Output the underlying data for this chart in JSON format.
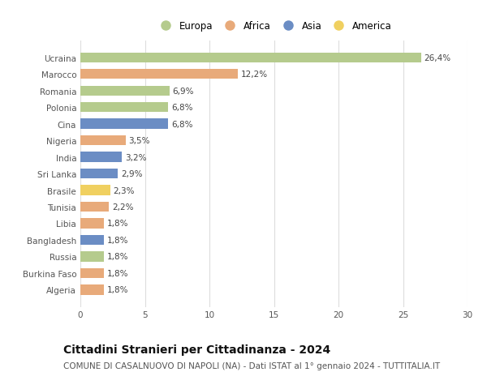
{
  "countries": [
    "Ucraina",
    "Marocco",
    "Romania",
    "Polonia",
    "Cina",
    "Nigeria",
    "India",
    "Sri Lanka",
    "Brasile",
    "Tunisia",
    "Libia",
    "Bangladesh",
    "Russia",
    "Burkina Faso",
    "Algeria"
  ],
  "values": [
    26.4,
    12.2,
    6.9,
    6.8,
    6.8,
    3.5,
    3.2,
    2.9,
    2.3,
    2.2,
    1.8,
    1.8,
    1.8,
    1.8,
    1.8
  ],
  "labels": [
    "26,4%",
    "12,2%",
    "6,9%",
    "6,8%",
    "6,8%",
    "3,5%",
    "3,2%",
    "2,9%",
    "2,3%",
    "2,2%",
    "1,8%",
    "1,8%",
    "1,8%",
    "1,8%",
    "1,8%"
  ],
  "continents": [
    "Europa",
    "Africa",
    "Europa",
    "Europa",
    "Asia",
    "Africa",
    "Asia",
    "Asia",
    "America",
    "Africa",
    "Africa",
    "Asia",
    "Europa",
    "Africa",
    "Africa"
  ],
  "continent_colors": {
    "Europa": "#b5cb8d",
    "Africa": "#e8aa7a",
    "Asia": "#6b8dc4",
    "America": "#f0d060"
  },
  "legend_order": [
    "Europa",
    "Africa",
    "Asia",
    "America"
  ],
  "title": "Cittadini Stranieri per Cittadinanza - 2024",
  "subtitle": "COMUNE DI CASALNUOVO DI NAPOLI (NA) - Dati ISTAT al 1° gennaio 2024 - TUTTITALIA.IT",
  "xlim": [
    0,
    30
  ],
  "xticks": [
    0,
    5,
    10,
    15,
    20,
    25,
    30
  ],
  "background_color": "#ffffff",
  "grid_color": "#dddddd",
  "bar_height": 0.6,
  "label_fontsize": 7.5,
  "tick_fontsize": 7.5,
  "title_fontsize": 10,
  "subtitle_fontsize": 7.5,
  "legend_fontsize": 8.5
}
